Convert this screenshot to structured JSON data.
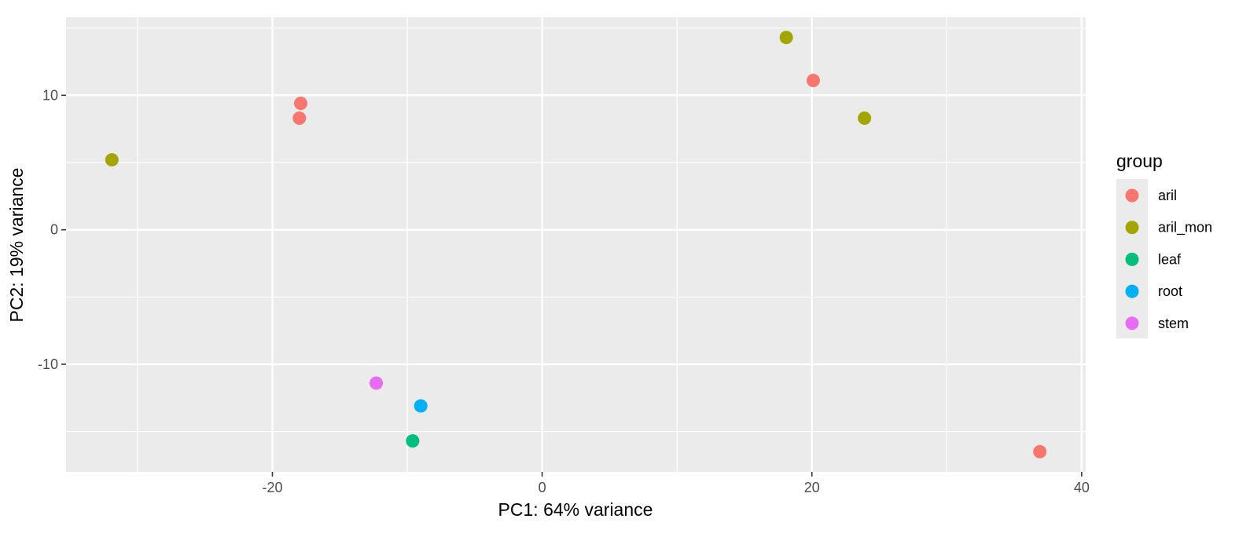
{
  "chart_data": {
    "type": "scatter",
    "xlabel": "PC1: 64% variance",
    "ylabel": "PC2: 19% variance",
    "xlim": [
      -35.3,
      40.3
    ],
    "ylim": [
      -18.0,
      15.8
    ],
    "x_ticks": [
      -20,
      0,
      20,
      40
    ],
    "y_ticks": [
      -10,
      0,
      10
    ],
    "grid": true,
    "legend": {
      "title": "group",
      "position": "right"
    },
    "series": [
      {
        "name": "aril",
        "color": "#F8766D",
        "points": [
          [
            -17.9,
            9.4
          ],
          [
            -18.0,
            8.3
          ],
          [
            20.1,
            11.1
          ],
          [
            36.9,
            -16.5
          ]
        ]
      },
      {
        "name": "aril_mon",
        "color": "#A3A500",
        "points": [
          [
            -31.9,
            5.2
          ],
          [
            18.1,
            14.3
          ],
          [
            23.9,
            8.3
          ]
        ]
      },
      {
        "name": "leaf",
        "color": "#00BF7D",
        "points": [
          [
            -9.6,
            -15.7
          ]
        ]
      },
      {
        "name": "root",
        "color": "#00B0F6",
        "points": [
          [
            -9.0,
            -13.1
          ]
        ]
      },
      {
        "name": "stem",
        "color": "#E76BF3",
        "points": [
          [
            -12.3,
            -11.4
          ]
        ]
      }
    ]
  }
}
